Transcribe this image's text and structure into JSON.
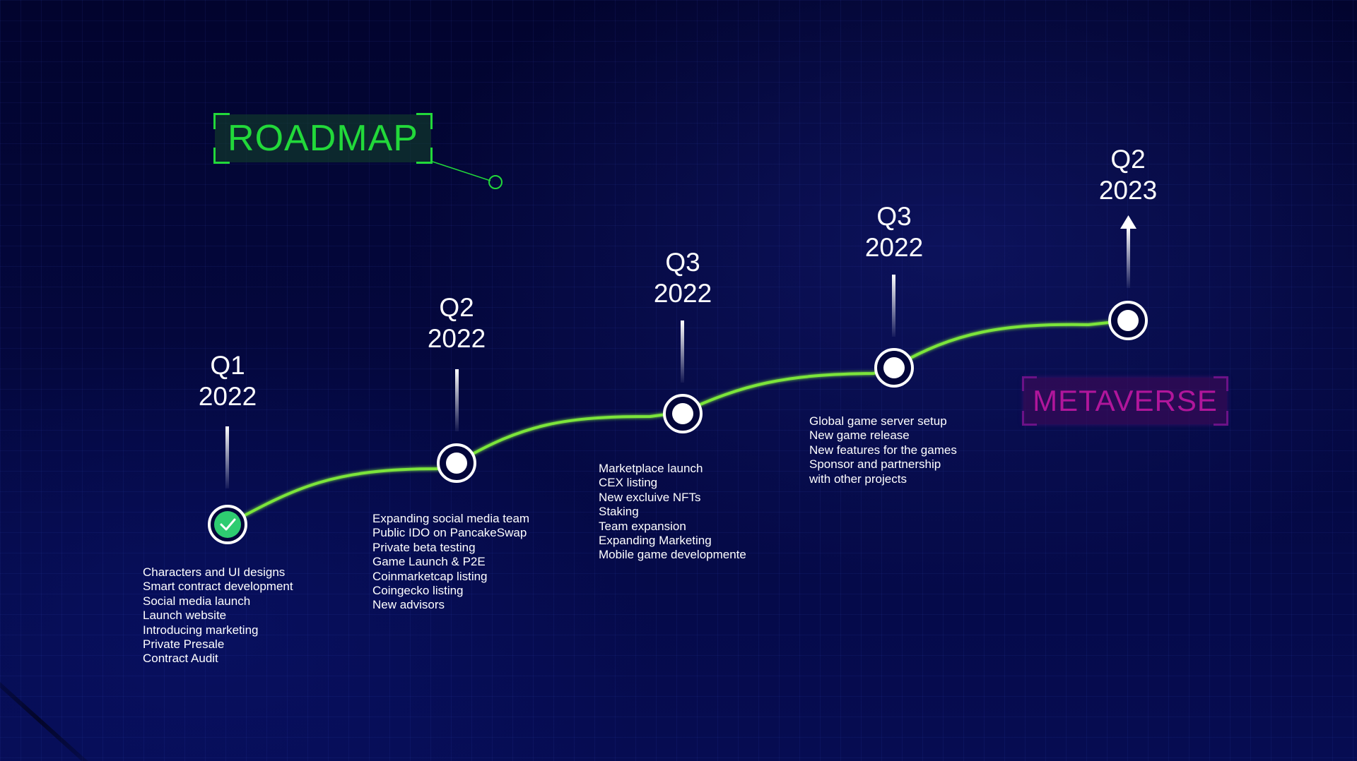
{
  "title": "ROADMAP",
  "milestones": [
    {
      "quarter": "Q1",
      "year": "2022",
      "completed": true,
      "tasks": [
        "Characters and UI designs",
        "Smart contract development",
        "Social media launch",
        "Launch website",
        "Introducing marketing",
        "Private Presale",
        "Contract Audit"
      ]
    },
    {
      "quarter": "Q2",
      "year": "2022",
      "completed": false,
      "tasks": [
        "Expanding social media team",
        "Public IDO on PancakeSwap",
        "Private beta testing",
        "Game Launch & P2E",
        "Coinmarketcap listing",
        "Coingecko listing",
        "New advisors"
      ]
    },
    {
      "quarter": "Q3",
      "year": "2022",
      "completed": false,
      "tasks": [
        "Marketplace launch",
        "CEX listing",
        "New excluive NFTs",
        "Staking",
        "Team expansion",
        "Expanding Marketing",
        "Mobile game developmente"
      ]
    },
    {
      "quarter": "Q3",
      "year": "2022",
      "completed": false,
      "tasks": [
        "Global game server setup",
        "New game release",
        "New features for the games",
        "Sponsor and partnership",
        "with other projects"
      ]
    },
    {
      "quarter": "Q2",
      "year": "2023",
      "completed": false,
      "badge": "METAVERSE",
      "tasks": []
    }
  ],
  "colors": {
    "background": "#03063a",
    "path": "#7be53a",
    "title": "#22d93a",
    "badge": "#b0169b",
    "completed_node": "#2ecc71",
    "text": "#ffffff"
  },
  "icons": {
    "completed": "check-icon",
    "pending": "dot-icon",
    "next": "arrow-up-icon"
  }
}
